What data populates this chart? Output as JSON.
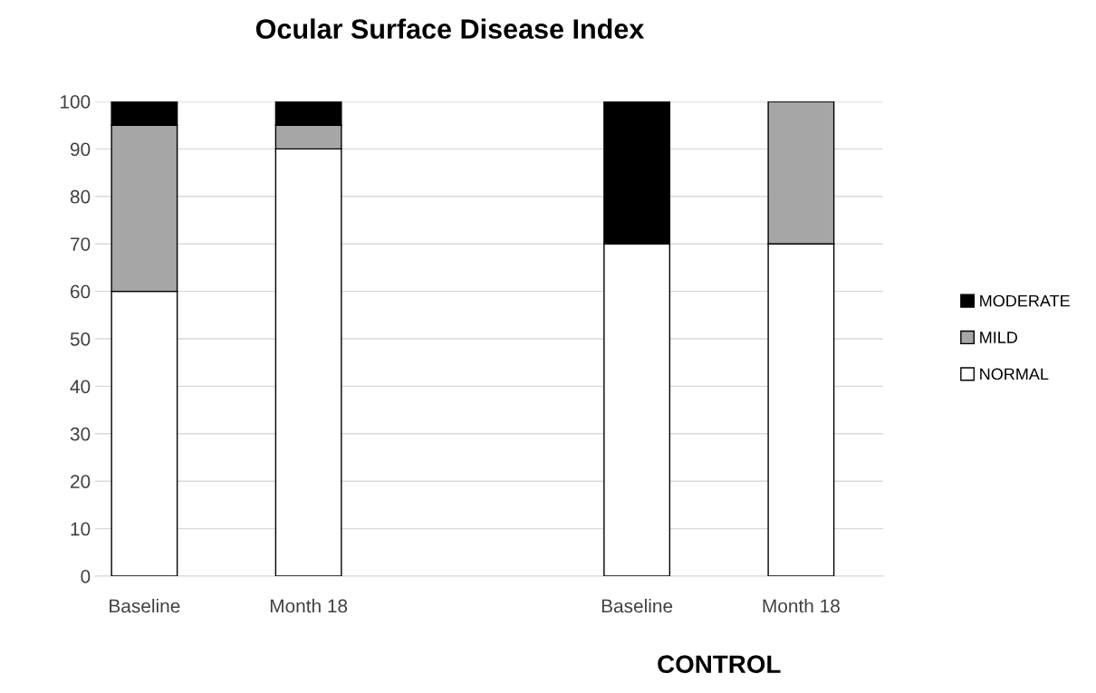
{
  "chart_data": {
    "type": "bar",
    "title": "Ocular Surface Disease Index",
    "categories": [
      "Baseline",
      "Month 18",
      null,
      "Baseline",
      "Month 18"
    ],
    "stacked": true,
    "series": [
      {
        "name": "NORMAL",
        "color": "#ffffff",
        "values": [
          60,
          90,
          null,
          70,
          70
        ]
      },
      {
        "name": "MILD",
        "color": "#a6a6a6",
        "values": [
          35,
          5,
          null,
          0,
          30
        ]
      },
      {
        "name": "MODERATE",
        "color": "#000000",
        "values": [
          5,
          5,
          null,
          30,
          0
        ]
      }
    ],
    "ylim": [
      0,
      100
    ],
    "yticks": [
      0,
      10,
      20,
      30,
      40,
      50,
      60,
      70,
      80,
      90,
      100
    ],
    "grid": "y",
    "legend": "right",
    "annotations": [
      "CONTROL"
    ]
  }
}
